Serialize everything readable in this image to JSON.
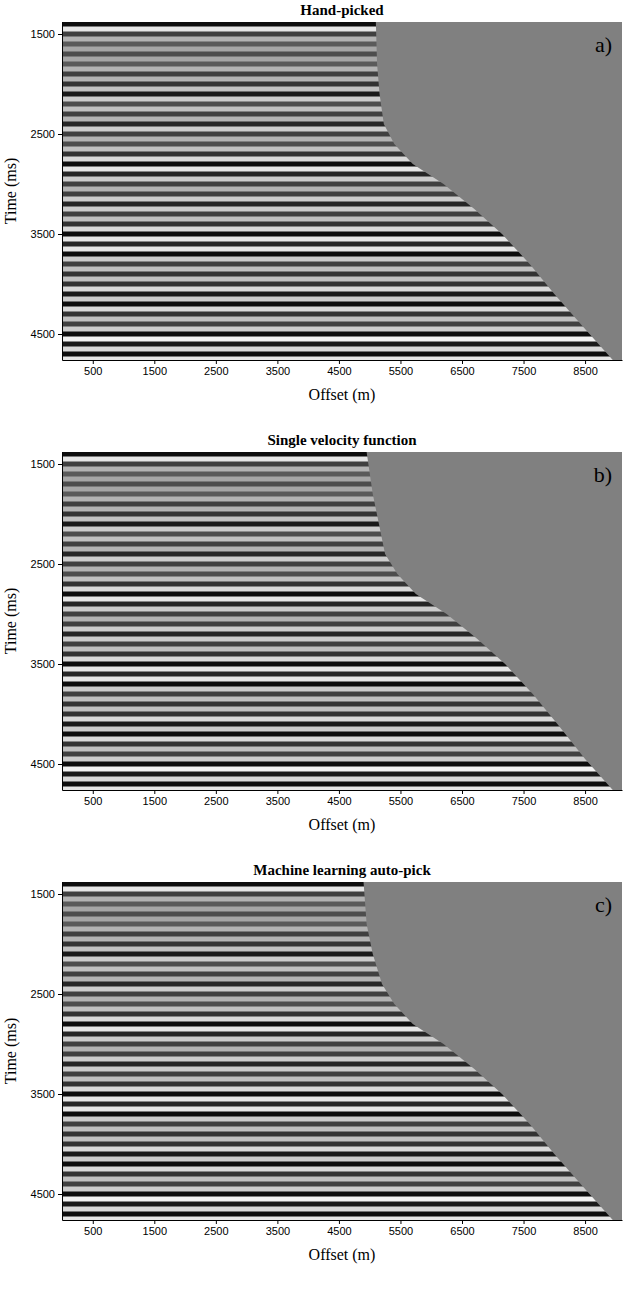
{
  "chart_data": [
    {
      "type": "seismic",
      "title": "Hand-picked",
      "label": "a)",
      "x_label": "Offset (m)",
      "y_label": "Time (ms)",
      "xlim": [
        0,
        9100
      ],
      "ylim": [
        1380,
        4760
      ],
      "xticks": [
        500,
        1500,
        2500,
        3500,
        4500,
        5500,
        6500,
        7500,
        8500
      ],
      "yticks": [
        1500,
        2500,
        3500,
        4500
      ],
      "events": {
        "time": [
          1400,
          1450,
          1500,
          1550,
          1600,
          1650,
          1700,
          1750,
          1800,
          1850,
          1900,
          1950,
          2000,
          2050,
          2100,
          2150,
          2200,
          2250,
          2300,
          2350,
          2400,
          2450,
          2500,
          2550,
          2600,
          2650,
          2700,
          2750,
          2800,
          2850,
          2900,
          2950,
          3000,
          3050,
          3100,
          3150,
          3200,
          3250,
          3300,
          3350,
          3400,
          3450,
          3500,
          3550,
          3600,
          3650,
          3700,
          3750,
          3800,
          3850,
          3900,
          3950,
          4000,
          4050,
          4100,
          4150,
          4200,
          4250,
          4300,
          4350,
          4400,
          4450,
          4500,
          4550,
          4600,
          4650,
          4700,
          4750
        ],
        "amplitude": [
          0.9,
          -0.8,
          0.5,
          -0.4,
          0.3,
          -0.3,
          0.4,
          -0.3,
          0.3,
          -0.4,
          0.5,
          -0.4,
          0.6,
          -0.5,
          0.8,
          -0.6,
          0.4,
          -0.5,
          0.5,
          -0.4,
          0.7,
          -0.6,
          0.5,
          -0.4,
          0.4,
          -0.5,
          0.6,
          -0.7,
          0.9,
          -0.8,
          0.7,
          -0.6,
          0.5,
          -0.4,
          0.5,
          -0.6,
          0.7,
          -0.6,
          0.5,
          -0.5,
          0.6,
          -0.7,
          0.9,
          -0.8,
          0.7,
          -0.8,
          0.9,
          -0.6,
          0.5,
          -0.5,
          0.6,
          -0.5,
          0.6,
          -0.7,
          0.8,
          -0.6,
          0.9,
          -0.7,
          0.6,
          -0.5,
          0.5,
          -0.6,
          0.9,
          -0.9,
          0.8,
          -0.7,
          0.9,
          -0.8
        ]
      },
      "mute": {
        "offset": [
          5100,
          5120,
          5160,
          5230,
          5400,
          5700,
          6200,
          6700,
          7150,
          7600,
          8000,
          8500,
          8950
        ],
        "time": [
          1380,
          1800,
          2100,
          2400,
          2600,
          2800,
          3000,
          3250,
          3500,
          3800,
          4100,
          4450,
          4760
        ]
      }
    },
    {
      "type": "seismic",
      "title": "Single velocity function",
      "label": "b)",
      "x_label": "Offset (m)",
      "y_label": "Time (ms)",
      "xlim": [
        0,
        9100
      ],
      "ylim": [
        1380,
        4760
      ],
      "xticks": [
        500,
        1500,
        2500,
        3500,
        4500,
        5500,
        6500,
        7500,
        8500
      ],
      "yticks": [
        1500,
        2500,
        3500,
        4500
      ],
      "events": {
        "time": [
          1400,
          1450,
          1500,
          1550,
          1600,
          1650,
          1700,
          1750,
          1800,
          1850,
          1900,
          1950,
          2000,
          2050,
          2100,
          2150,
          2200,
          2250,
          2300,
          2350,
          2400,
          2450,
          2500,
          2550,
          2600,
          2650,
          2700,
          2750,
          2800,
          2850,
          2900,
          2950,
          3000,
          3050,
          3100,
          3150,
          3200,
          3250,
          3300,
          3350,
          3400,
          3450,
          3500,
          3550,
          3600,
          3650,
          3700,
          3750,
          3800,
          3850,
          3900,
          3950,
          4000,
          4050,
          4100,
          4150,
          4200,
          4250,
          4300,
          4350,
          4400,
          4450,
          4500,
          4550,
          4600,
          4650,
          4700,
          4750
        ],
        "amplitude": [
          0.9,
          -0.8,
          0.5,
          -0.4,
          0.3,
          -0.3,
          0.4,
          -0.3,
          0.3,
          -0.4,
          0.5,
          -0.4,
          0.6,
          -0.5,
          0.8,
          -0.6,
          0.4,
          -0.5,
          0.5,
          -0.4,
          0.7,
          -0.6,
          0.5,
          -0.4,
          0.4,
          -0.5,
          0.6,
          -0.7,
          0.9,
          -0.8,
          0.7,
          -0.6,
          0.5,
          -0.4,
          0.5,
          -0.6,
          0.7,
          -0.6,
          0.5,
          -0.5,
          0.6,
          -0.7,
          0.9,
          -0.8,
          0.7,
          -0.8,
          0.9,
          -0.6,
          0.5,
          -0.5,
          0.6,
          -0.5,
          0.6,
          -0.7,
          0.8,
          -0.6,
          0.9,
          -0.7,
          0.6,
          -0.5,
          0.5,
          -0.6,
          0.9,
          -0.9,
          0.8,
          -0.7,
          0.9,
          -0.8
        ]
      },
      "mute": {
        "offset": [
          4950,
          5050,
          5150,
          5250,
          5450,
          5750,
          6250,
          6750,
          7200,
          7650,
          8050,
          8500,
          8950
        ],
        "time": [
          1380,
          1800,
          2100,
          2400,
          2600,
          2800,
          3000,
          3250,
          3500,
          3800,
          4100,
          4450,
          4760
        ]
      }
    },
    {
      "type": "seismic",
      "title": "Machine learning auto-pick",
      "label": "c)",
      "x_label": "Offset (m)",
      "y_label": "Time (ms)",
      "xlim": [
        0,
        9100
      ],
      "ylim": [
        1380,
        4760
      ],
      "xticks": [
        500,
        1500,
        2500,
        3500,
        4500,
        5500,
        6500,
        7500,
        8500
      ],
      "yticks": [
        1500,
        2500,
        3500,
        4500
      ],
      "events": {
        "time": [
          1400,
          1450,
          1500,
          1550,
          1600,
          1650,
          1700,
          1750,
          1800,
          1850,
          1900,
          1950,
          2000,
          2050,
          2100,
          2150,
          2200,
          2250,
          2300,
          2350,
          2400,
          2450,
          2500,
          2550,
          2600,
          2650,
          2700,
          2750,
          2800,
          2850,
          2900,
          2950,
          3000,
          3050,
          3100,
          3150,
          3200,
          3250,
          3300,
          3350,
          3400,
          3450,
          3500,
          3550,
          3600,
          3650,
          3700,
          3750,
          3800,
          3850,
          3900,
          3950,
          4000,
          4050,
          4100,
          4150,
          4200,
          4250,
          4300,
          4350,
          4400,
          4450,
          4500,
          4550,
          4600,
          4650,
          4700,
          4750
        ],
        "amplitude": [
          0.9,
          -0.8,
          0.5,
          -0.4,
          0.3,
          -0.3,
          0.4,
          -0.3,
          0.3,
          -0.4,
          0.5,
          -0.4,
          0.6,
          -0.5,
          0.8,
          -0.6,
          0.4,
          -0.5,
          0.5,
          -0.4,
          0.7,
          -0.6,
          0.5,
          -0.4,
          0.4,
          -0.5,
          0.6,
          -0.7,
          0.9,
          -0.8,
          0.7,
          -0.6,
          0.5,
          -0.4,
          0.5,
          -0.6,
          0.7,
          -0.6,
          0.5,
          -0.5,
          0.6,
          -0.7,
          0.9,
          -0.8,
          0.7,
          -0.8,
          0.9,
          -0.6,
          0.5,
          -0.5,
          0.6,
          -0.5,
          0.6,
          -0.7,
          0.8,
          -0.6,
          0.9,
          -0.7,
          0.6,
          -0.5,
          0.5,
          -0.6,
          0.9,
          -0.9,
          0.8,
          -0.7,
          0.9,
          -0.8
        ]
      },
      "mute": {
        "offset": [
          4900,
          4950,
          5050,
          5200,
          5400,
          5700,
          6200,
          6700,
          7150,
          7600,
          8000,
          8500,
          8950
        ],
        "time": [
          1380,
          1800,
          2100,
          2400,
          2600,
          2800,
          3000,
          3250,
          3500,
          3800,
          4100,
          4450,
          4760
        ]
      }
    }
  ]
}
